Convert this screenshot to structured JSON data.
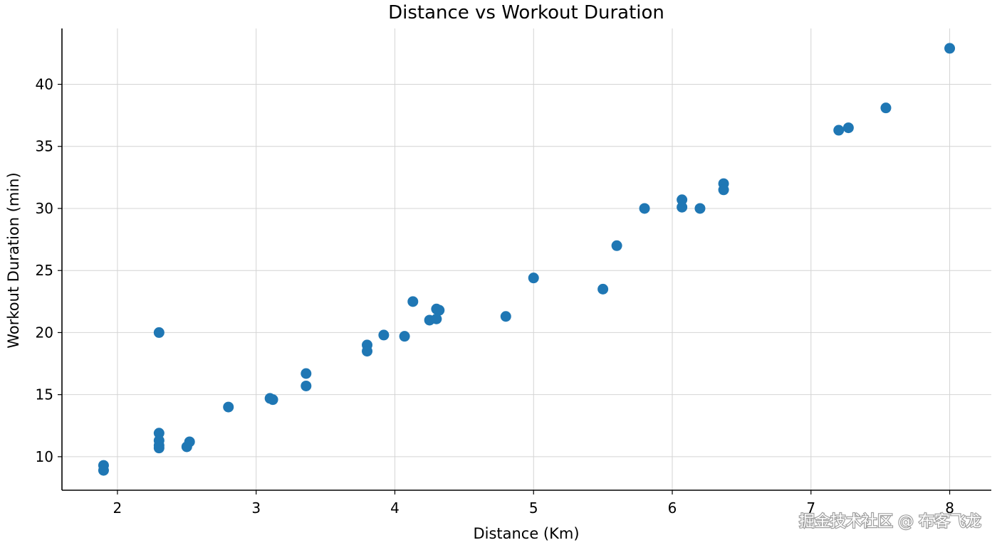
{
  "chart_data": {
    "type": "scatter",
    "title": "Distance vs Workout Duration",
    "xlabel": "Distance (Km)",
    "ylabel": "Workout Duration (min)",
    "xlim": [
      1.6,
      8.3
    ],
    "ylim": [
      7.3,
      44.5
    ],
    "xticks": [
      2,
      3,
      4,
      5,
      6,
      7,
      8
    ],
    "yticks": [
      10,
      15,
      20,
      25,
      30,
      35,
      40
    ],
    "grid": true,
    "marker_color": "#1f77b4",
    "points": [
      {
        "x": 1.9,
        "y": 9.3
      },
      {
        "x": 1.9,
        "y": 8.9
      },
      {
        "x": 2.3,
        "y": 20.0
      },
      {
        "x": 2.3,
        "y": 11.9
      },
      {
        "x": 2.3,
        "y": 11.3
      },
      {
        "x": 2.3,
        "y": 10.9
      },
      {
        "x": 2.3,
        "y": 10.7
      },
      {
        "x": 2.5,
        "y": 10.8
      },
      {
        "x": 2.52,
        "y": 11.2
      },
      {
        "x": 2.8,
        "y": 14.0
      },
      {
        "x": 3.1,
        "y": 14.7
      },
      {
        "x": 3.12,
        "y": 14.6
      },
      {
        "x": 3.36,
        "y": 16.7
      },
      {
        "x": 3.36,
        "y": 15.7
      },
      {
        "x": 3.8,
        "y": 19.0
      },
      {
        "x": 3.8,
        "y": 18.5
      },
      {
        "x": 3.92,
        "y": 19.8
      },
      {
        "x": 4.07,
        "y": 19.7
      },
      {
        "x": 4.13,
        "y": 22.5
      },
      {
        "x": 4.25,
        "y": 21.0
      },
      {
        "x": 4.3,
        "y": 21.9
      },
      {
        "x": 4.32,
        "y": 21.8
      },
      {
        "x": 4.3,
        "y": 21.1
      },
      {
        "x": 4.8,
        "y": 21.3
      },
      {
        "x": 5.0,
        "y": 24.4
      },
      {
        "x": 5.5,
        "y": 23.5
      },
      {
        "x": 5.6,
        "y": 27.0
      },
      {
        "x": 5.8,
        "y": 30.0
      },
      {
        "x": 6.07,
        "y": 30.7
      },
      {
        "x": 6.07,
        "y": 30.1
      },
      {
        "x": 6.2,
        "y": 30.0
      },
      {
        "x": 6.37,
        "y": 32.0
      },
      {
        "x": 6.37,
        "y": 31.5
      },
      {
        "x": 7.2,
        "y": 36.3
      },
      {
        "x": 7.27,
        "y": 36.5
      },
      {
        "x": 7.54,
        "y": 38.1
      },
      {
        "x": 8.0,
        "y": 42.9
      }
    ]
  },
  "watermark": "掘金技术社区 @ 布客飞龙"
}
